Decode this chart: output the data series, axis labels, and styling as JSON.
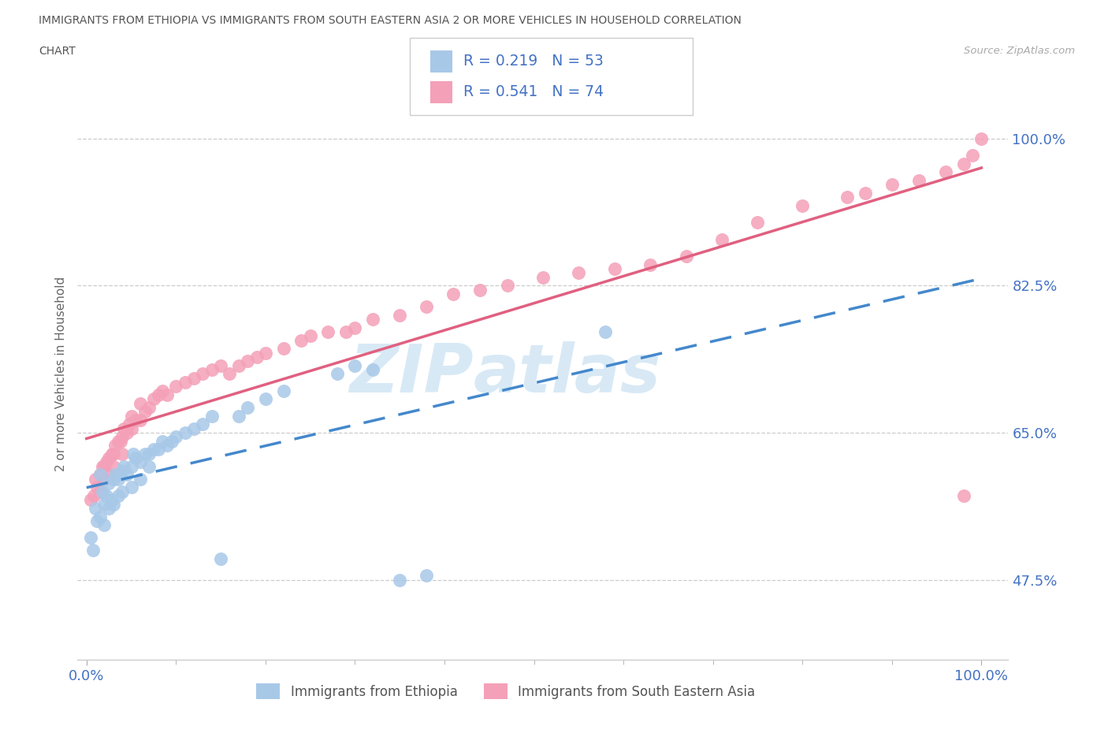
{
  "title_line1": "IMMIGRANTS FROM ETHIOPIA VS IMMIGRANTS FROM SOUTH EASTERN ASIA 2 OR MORE VEHICLES IN HOUSEHOLD CORRELATION",
  "title_line2": "CHART",
  "source_text": "Source: ZipAtlas.com",
  "ylabel": "2 or more Vehicles in Household",
  "xlim_plot": [
    -0.01,
    1.03
  ],
  "ylim_plot": [
    0.38,
    1.06
  ],
  "x_ticks": [
    0.0,
    1.0
  ],
  "x_tick_labels": [
    "0.0%",
    "100.0%"
  ],
  "y_ticks": [
    0.475,
    0.65,
    0.825,
    1.0
  ],
  "y_tick_labels": [
    "47.5%",
    "65.0%",
    "82.5%",
    "100.0%"
  ],
  "r_ethiopia": 0.219,
  "n_ethiopia": 53,
  "r_sea": 0.541,
  "n_sea": 74,
  "color_ethiopia": "#a8c8e8",
  "color_sea": "#f4a0b8",
  "color_trendline_ethiopia": "#4488cc",
  "color_trendline_sea": "#e06080",
  "label_ethiopia": "Immigrants from Ethiopia",
  "label_sea": "Immigrants from South Eastern Asia",
  "ethiopia_x": [
    0.005,
    0.007,
    0.01,
    0.012,
    0.015,
    0.015,
    0.018,
    0.02,
    0.02,
    0.022,
    0.025,
    0.025,
    0.028,
    0.03,
    0.03,
    0.032,
    0.035,
    0.035,
    0.038,
    0.04,
    0.04,
    0.042,
    0.045,
    0.05,
    0.05,
    0.052,
    0.055,
    0.06,
    0.06,
    0.065,
    0.07,
    0.07,
    0.075,
    0.08,
    0.085,
    0.09,
    0.095,
    0.1,
    0.11,
    0.12,
    0.13,
    0.14,
    0.15,
    0.17,
    0.18,
    0.2,
    0.22,
    0.28,
    0.3,
    0.32,
    0.35,
    0.38,
    0.58
  ],
  "ethiopia_y": [
    0.525,
    0.51,
    0.56,
    0.545,
    0.6,
    0.55,
    0.58,
    0.565,
    0.54,
    0.575,
    0.59,
    0.56,
    0.57,
    0.595,
    0.565,
    0.6,
    0.595,
    0.575,
    0.6,
    0.605,
    0.58,
    0.61,
    0.6,
    0.61,
    0.585,
    0.625,
    0.62,
    0.615,
    0.595,
    0.625,
    0.625,
    0.61,
    0.63,
    0.63,
    0.64,
    0.635,
    0.64,
    0.645,
    0.65,
    0.655,
    0.66,
    0.67,
    0.5,
    0.67,
    0.68,
    0.69,
    0.7,
    0.72,
    0.73,
    0.725,
    0.475,
    0.48,
    0.77
  ],
  "sea_x": [
    0.005,
    0.008,
    0.01,
    0.012,
    0.015,
    0.015,
    0.018,
    0.02,
    0.02,
    0.022,
    0.025,
    0.025,
    0.028,
    0.03,
    0.03,
    0.032,
    0.035,
    0.038,
    0.04,
    0.04,
    0.042,
    0.045,
    0.048,
    0.05,
    0.05,
    0.055,
    0.06,
    0.06,
    0.065,
    0.07,
    0.075,
    0.08,
    0.085,
    0.09,
    0.1,
    0.11,
    0.12,
    0.13,
    0.14,
    0.15,
    0.16,
    0.17,
    0.18,
    0.19,
    0.2,
    0.22,
    0.24,
    0.25,
    0.27,
    0.29,
    0.3,
    0.32,
    0.35,
    0.38,
    0.41,
    0.44,
    0.47,
    0.51,
    0.55,
    0.59,
    0.63,
    0.67,
    0.71,
    0.75,
    0.8,
    0.85,
    0.87,
    0.9,
    0.93,
    0.96,
    0.98,
    0.98,
    0.99,
    1.0
  ],
  "sea_y": [
    0.57,
    0.575,
    0.595,
    0.585,
    0.58,
    0.6,
    0.61,
    0.595,
    0.61,
    0.615,
    0.6,
    0.62,
    0.625,
    0.61,
    0.625,
    0.635,
    0.64,
    0.64,
    0.645,
    0.625,
    0.655,
    0.65,
    0.66,
    0.655,
    0.67,
    0.665,
    0.665,
    0.685,
    0.675,
    0.68,
    0.69,
    0.695,
    0.7,
    0.695,
    0.705,
    0.71,
    0.715,
    0.72,
    0.725,
    0.73,
    0.72,
    0.73,
    0.735,
    0.74,
    0.745,
    0.75,
    0.76,
    0.765,
    0.77,
    0.77,
    0.775,
    0.785,
    0.79,
    0.8,
    0.815,
    0.82,
    0.825,
    0.835,
    0.84,
    0.845,
    0.85,
    0.86,
    0.88,
    0.9,
    0.92,
    0.93,
    0.935,
    0.945,
    0.95,
    0.96,
    0.97,
    0.575,
    0.98,
    1.0
  ]
}
